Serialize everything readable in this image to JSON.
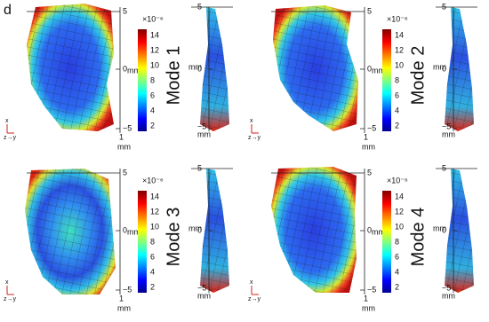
{
  "label": "d",
  "panels": [
    {
      "title": "Mode 1",
      "front": {
        "yticks": [
          "5",
          "0",
          "−5"
        ],
        "xtick": "1",
        "y_unit": "mm",
        "x_unit": "mm"
      },
      "colorbar": {
        "multiplier": "×10⁻⁶",
        "ticks": [
          14,
          12,
          10,
          8,
          6,
          4,
          2
        ]
      },
      "side": {
        "yticks": [
          "5",
          "0",
          "−5"
        ],
        "y_unit": "mm",
        "x_unit": "mm"
      },
      "axis_indicator": {
        "x": "x",
        "zy": "z→y"
      }
    },
    {
      "title": "Mode 2",
      "front": {
        "yticks": [
          "5",
          "0",
          "−5"
        ],
        "xtick": "1",
        "y_unit": "mm",
        "x_unit": "mm"
      },
      "colorbar": {
        "multiplier": "×10⁻⁶",
        "ticks": [
          14,
          12,
          10,
          8,
          6,
          4,
          2
        ]
      },
      "side": {
        "yticks": [
          "5",
          "0",
          "−5"
        ],
        "y_unit": "mm",
        "x_unit": "mm"
      },
      "axis_indicator": {
        "x": "x",
        "zy": "z→y"
      }
    },
    {
      "title": "Mode 3",
      "front": {
        "yticks": [
          "5",
          "0",
          "−5"
        ],
        "xtick": "1",
        "y_unit": "mm",
        "x_unit": "mm"
      },
      "colorbar": {
        "multiplier": "×10⁻⁶",
        "ticks": [
          14,
          12,
          10,
          8,
          6,
          4,
          2
        ]
      },
      "side": {
        "yticks": [
          "5",
          "0",
          "−5"
        ],
        "y_unit": "mm",
        "x_unit": "mm"
      },
      "axis_indicator": {
        "x": "x",
        "zy": "z→y"
      }
    },
    {
      "title": "Mode 4",
      "front": {
        "yticks": [
          "5",
          "0",
          "−5"
        ],
        "xtick": "1",
        "y_unit": "mm",
        "x_unit": "mm"
      },
      "colorbar": {
        "multiplier": "×10⁻⁶",
        "ticks": [
          14,
          12,
          10,
          8,
          6,
          4,
          2
        ]
      },
      "side": {
        "yticks": [
          "5",
          "0",
          "−5"
        ],
        "y_unit": "mm",
        "x_unit": "mm"
      },
      "axis_indicator": {
        "x": "x",
        "zy": "z→y"
      }
    }
  ]
}
